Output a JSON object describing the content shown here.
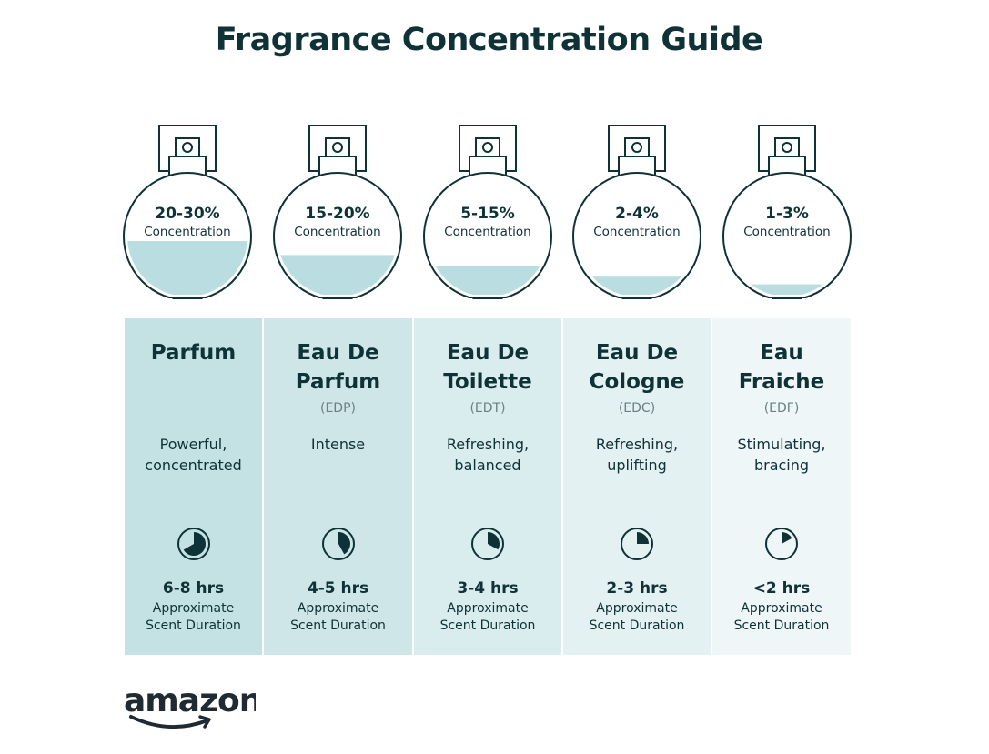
{
  "title": "Fragrance Concentration Guide",
  "colors": {
    "text": "#0f3236",
    "fill": "#b9dde1",
    "col_colors": [
      "#c4e1e4",
      "#cfe6e9",
      "#d9ecee",
      "#e3f1f2",
      "#eef6f7"
    ]
  },
  "types": [
    {
      "concentration": "20-30%",
      "concentration_label": "Concentration",
      "fill_level": 0.45,
      "name_lines": [
        "Parfum"
      ],
      "abbr": "",
      "desc_lines": [
        "Powerful,",
        "concentrated"
      ],
      "clock_fraction": 0.667,
      "duration": "6-8 hrs",
      "duration_label_lines": [
        "Approximate",
        "Scent Duration"
      ]
    },
    {
      "concentration": "15-20%",
      "concentration_label": "Concentration",
      "fill_level": 0.34,
      "name_lines": [
        "Eau De",
        "Parfum"
      ],
      "abbr": "(EDP)",
      "desc_lines": [
        "Intense"
      ],
      "clock_fraction": 0.42,
      "duration": "4-5 hrs",
      "duration_label_lines": [
        "Approximate",
        "Scent Duration"
      ]
    },
    {
      "concentration": "5-15%",
      "concentration_label": "Concentration",
      "fill_level": 0.25,
      "name_lines": [
        "Eau De",
        "Toilette"
      ],
      "abbr": "(EDT)",
      "desc_lines": [
        "Refreshing,",
        "balanced"
      ],
      "clock_fraction": 0.33,
      "duration": "3-4 hrs",
      "duration_label_lines": [
        "Approximate",
        "Scent Duration"
      ]
    },
    {
      "concentration": "2-4%",
      "concentration_label": "Concentration",
      "fill_level": 0.17,
      "name_lines": [
        "Eau De",
        "Cologne"
      ],
      "abbr": "(EDC)",
      "desc_lines": [
        "Refreshing,",
        "uplifting"
      ],
      "clock_fraction": 0.25,
      "duration": "2-3 hrs",
      "duration_label_lines": [
        "Approximate",
        "Scent Duration"
      ]
    },
    {
      "concentration": "1-3%",
      "concentration_label": "Concentration",
      "fill_level": 0.11,
      "name_lines": [
        "Eau",
        "Fraiche"
      ],
      "abbr": "(EDF)",
      "desc_lines": [
        "Stimulating,",
        "bracing"
      ],
      "clock_fraction": 0.17,
      "duration": "<2 hrs",
      "duration_label_lines": [
        "Approximate",
        "Scent Duration"
      ]
    }
  ],
  "logo": "amazon"
}
